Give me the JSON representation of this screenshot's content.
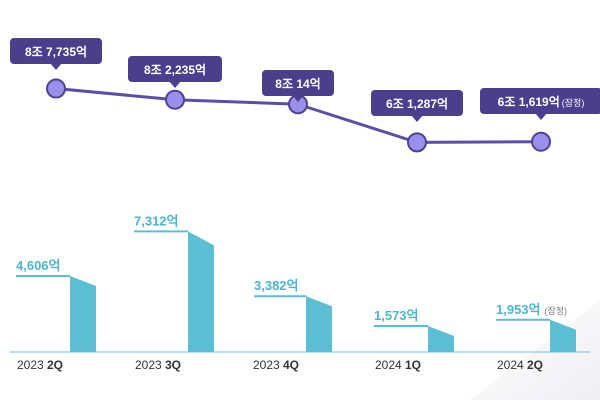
{
  "chart_data": [
    {
      "type": "line",
      "name": "top-line",
      "categories": [
        "2023 2Q",
        "2023 3Q",
        "2023 4Q",
        "2024 1Q",
        "2024 2Q"
      ],
      "values": [
        87735,
        82235,
        80014,
        61287,
        61619
      ],
      "value_unit": "억",
      "labels": [
        {
          "main": "8조 7,735억",
          "note": ""
        },
        {
          "main": "8조 2,235억",
          "note": ""
        },
        {
          "main": "8조 14억",
          "note": ""
        },
        {
          "main": "6조 1,287억",
          "note": ""
        },
        {
          "main": "6조 1,619억",
          "note": "(잠정)"
        }
      ],
      "colors": {
        "line": "#5b4ea8",
        "marker_fill": "#9a8fea",
        "marker_stroke": "#4f438f",
        "callout": "#4a3f8c",
        "callout_text": "#ffffff"
      }
    },
    {
      "type": "bar",
      "name": "bottom-bars",
      "categories": [
        "2023 2Q",
        "2023 3Q",
        "2023 4Q",
        "2024 1Q",
        "2024 2Q"
      ],
      "values": [
        4606,
        7312,
        3382,
        1573,
        1953
      ],
      "value_unit": "억",
      "labels": [
        {
          "main": "4,606억",
          "note": ""
        },
        {
          "main": "7,312억",
          "note": ""
        },
        {
          "main": "3,382억",
          "note": ""
        },
        {
          "main": "1,573억",
          "note": ""
        },
        {
          "main": "1,953억",
          "note": "(잠정)"
        }
      ],
      "quarter_labels": [
        {
          "year": "2023",
          "quarter": "2Q"
        },
        {
          "year": "2023",
          "quarter": "3Q"
        },
        {
          "year": "2023",
          "quarter": "4Q"
        },
        {
          "year": "2024",
          "quarter": "1Q"
        },
        {
          "year": "2024",
          "quarter": "2Q"
        }
      ],
      "colors": {
        "bar": "#5bbfd4",
        "label": "#4cb4ce",
        "note": "#7a7a7a",
        "axis": "#333333",
        "baseline": "#5bbfd4"
      }
    }
  ]
}
